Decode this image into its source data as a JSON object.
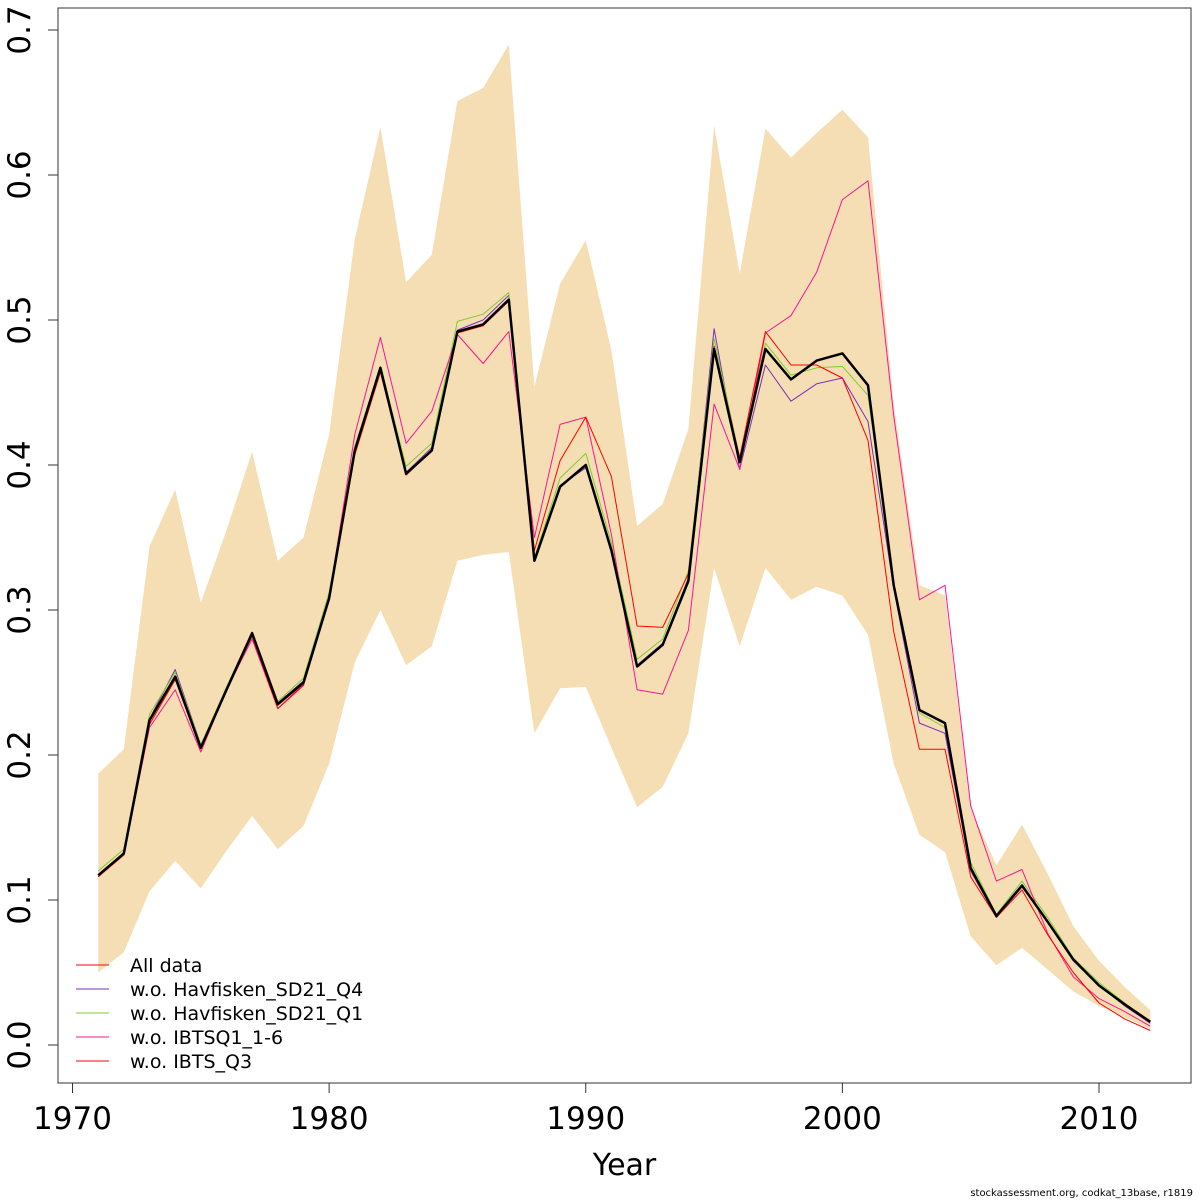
{
  "chart_data": {
    "type": "line",
    "title": "",
    "xlabel": "Year",
    "ylabel": "",
    "xlim": [
      1970,
      2013
    ],
    "ylim": [
      0,
      0.7
    ],
    "x_ticks": [
      1970,
      1980,
      1990,
      2000,
      2010
    ],
    "y_ticks": [
      0.0,
      0.1,
      0.2,
      0.3,
      0.4,
      0.5,
      0.6,
      0.7
    ],
    "y_tick_labels": [
      "0.0",
      "0.1",
      "0.2",
      "0.3",
      "0.4",
      "0.5",
      "0.6",
      "0.7"
    ],
    "grid": false,
    "legend_position": "bottom-left",
    "band_color": "#f5deb3",
    "x": [
      1971,
      1972,
      1973,
      1974,
      1975,
      1976,
      1977,
      1978,
      1979,
      1980,
      1981,
      1982,
      1983,
      1984,
      1985,
      1986,
      1987,
      1988,
      1989,
      1990,
      1991,
      1992,
      1993,
      1994,
      1995,
      1996,
      1997,
      1998,
      1999,
      2000,
      2001,
      2002,
      2003,
      2004,
      2005,
      2006,
      2007,
      2008,
      2009,
      2010,
      2011,
      2012
    ],
    "confidence_band": {
      "upper": [
        0.187,
        0.204,
        0.344,
        0.383,
        0.305,
        0.355,
        0.409,
        0.334,
        0.35,
        0.421,
        0.556,
        0.633,
        0.526,
        0.545,
        0.651,
        0.66,
        0.69,
        0.454,
        0.525,
        0.555,
        0.479,
        0.358,
        0.373,
        0.425,
        0.634,
        0.532,
        0.632,
        0.612,
        0.629,
        0.645,
        0.626,
        0.442,
        0.317,
        0.31,
        0.163,
        0.124,
        0.152,
        0.118,
        0.082,
        0.058,
        0.04,
        0.024
      ],
      "lower": [
        0.05,
        0.064,
        0.106,
        0.127,
        0.108,
        0.134,
        0.158,
        0.135,
        0.151,
        0.194,
        0.264,
        0.3,
        0.262,
        0.275,
        0.334,
        0.338,
        0.34,
        0.215,
        0.246,
        0.247,
        0.205,
        0.164,
        0.178,
        0.215,
        0.329,
        0.275,
        0.329,
        0.307,
        0.316,
        0.31,
        0.283,
        0.194,
        0.145,
        0.133,
        0.075,
        0.055,
        0.067,
        0.052,
        0.037,
        0.027,
        0.019,
        0.011
      ]
    },
    "series": [
      {
        "name": "All data",
        "color": "#000000",
        "legend_color": "#ff0000",
        "width": 2.5,
        "values": [
          0.117,
          0.132,
          0.224,
          0.254,
          0.205,
          0.245,
          0.284,
          0.235,
          0.25,
          0.308,
          0.41,
          0.467,
          0.394,
          0.41,
          0.492,
          0.497,
          0.514,
          0.334,
          0.385,
          0.4,
          0.341,
          0.261,
          0.276,
          0.32,
          0.48,
          0.402,
          0.48,
          0.459,
          0.472,
          0.477,
          0.455,
          0.317,
          0.231,
          0.222,
          0.122,
          0.089,
          0.11,
          0.085,
          0.059,
          0.041,
          0.028,
          0.016
        ]
      },
      {
        "name": "w.o. Havfisken_SD21_Q4",
        "color": "#7b2fbe",
        "legend_color": "#7b2fbe",
        "width": 1,
        "values": [
          0.116,
          0.133,
          0.225,
          0.259,
          0.207,
          0.246,
          0.284,
          0.236,
          0.251,
          0.309,
          0.41,
          0.467,
          0.395,
          0.412,
          0.493,
          0.5,
          0.517,
          0.336,
          0.386,
          0.398,
          0.342,
          0.262,
          0.277,
          0.322,
          0.494,
          0.397,
          0.469,
          0.444,
          0.456,
          0.46,
          0.43,
          0.315,
          0.222,
          0.215,
          0.12,
          0.088,
          0.109,
          0.085,
          0.058,
          0.041,
          0.027,
          0.015
        ]
      },
      {
        "name": "w.o. Havfisken_SD21_Q1",
        "color": "#7fcc2c",
        "legend_color": "#7fcc2c",
        "width": 1,
        "values": [
          0.12,
          0.135,
          0.228,
          0.257,
          0.207,
          0.247,
          0.285,
          0.237,
          0.253,
          0.312,
          0.413,
          0.468,
          0.399,
          0.415,
          0.499,
          0.504,
          0.519,
          0.336,
          0.391,
          0.408,
          0.346,
          0.266,
          0.28,
          0.327,
          0.487,
          0.405,
          0.484,
          0.462,
          0.467,
          0.468,
          0.448,
          0.319,
          0.229,
          0.219,
          0.126,
          0.09,
          0.113,
          0.088,
          0.06,
          0.043,
          0.029,
          0.016
        ]
      },
      {
        "name": "w.o. IBTSQ1_1-6",
        "color": "#ff1493",
        "legend_color": "#ff1493",
        "width": 1,
        "values": [
          0.116,
          0.131,
          0.219,
          0.245,
          0.202,
          0.245,
          0.28,
          0.232,
          0.249,
          0.309,
          0.421,
          0.488,
          0.415,
          0.437,
          0.49,
          0.47,
          0.492,
          0.35,
          0.428,
          0.433,
          0.352,
          0.245,
          0.242,
          0.286,
          0.442,
          0.397,
          0.491,
          0.503,
          0.533,
          0.583,
          0.596,
          0.434,
          0.307,
          0.317,
          0.165,
          0.113,
          0.121,
          0.077,
          0.047,
          0.032,
          0.023,
          0.013
        ]
      },
      {
        "name": "w.o. IBTS_Q3",
        "color": "#ff0000",
        "legend_color": "#ff0000",
        "width": 1,
        "values": [
          0.116,
          0.131,
          0.221,
          0.252,
          0.204,
          0.244,
          0.282,
          0.232,
          0.248,
          0.307,
          0.407,
          0.464,
          0.393,
          0.41,
          0.491,
          0.496,
          0.513,
          0.341,
          0.403,
          0.433,
          0.392,
          0.289,
          0.288,
          0.325,
          0.482,
          0.405,
          0.492,
          0.469,
          0.469,
          0.46,
          0.417,
          0.285,
          0.204,
          0.204,
          0.116,
          0.088,
          0.107,
          0.076,
          0.05,
          0.029,
          0.018,
          0.01
        ]
      }
    ]
  },
  "footer": "stockassessment.org, codkat_13base, r1819"
}
